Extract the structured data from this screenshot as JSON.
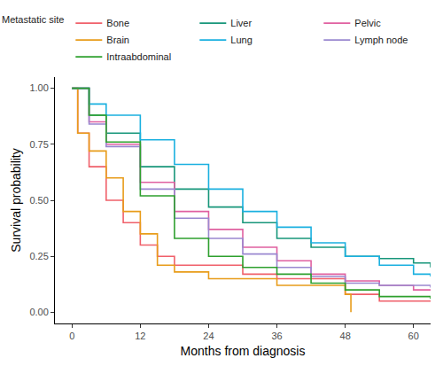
{
  "chart_data": {
    "type": "line",
    "line_style": "step",
    "x_label": "Months from diagnosis",
    "y_label": "Survival probability",
    "legend_title": "Metastatic site",
    "legend": "top",
    "grid": false,
    "xlim": [
      -3,
      63
    ],
    "xticks": [
      0,
      12,
      24,
      36,
      48,
      60
    ],
    "ylim": [
      -0.05,
      1.05
    ],
    "yticks": [
      {
        "value": 0,
        "label": "0.00"
      },
      {
        "value": 0.25,
        "label": "0.25"
      },
      {
        "value": 0.5,
        "label": "0.50"
      },
      {
        "value": 0.75,
        "label": "0.75"
      },
      {
        "value": 1,
        "label": "1.00"
      }
    ],
    "series": [
      {
        "name": "Bone",
        "color": "#f0606a",
        "x": [
          0,
          1,
          3,
          6,
          9,
          12,
          15,
          18,
          24,
          30,
          36,
          42,
          48,
          54,
          60,
          63
        ],
        "values": [
          1.0,
          0.8,
          0.65,
          0.5,
          0.4,
          0.3,
          0.25,
          0.21,
          0.21,
          0.17,
          0.15,
          0.15,
          0.08,
          0.05,
          0.05,
          0.05
        ]
      },
      {
        "name": "Liver",
        "color": "#17967a",
        "x": [
          0,
          3,
          6,
          12,
          18,
          24,
          30,
          36,
          42,
          48,
          54,
          60,
          63
        ],
        "values": [
          1.0,
          0.88,
          0.8,
          0.65,
          0.55,
          0.47,
          0.4,
          0.33,
          0.29,
          0.25,
          0.24,
          0.22,
          0.2
        ]
      },
      {
        "name": "Pelvic",
        "color": "#e060a0",
        "x": [
          0,
          3,
          6,
          12,
          18,
          24,
          30,
          36,
          42,
          48,
          54,
          60,
          63
        ],
        "values": [
          1.0,
          0.85,
          0.75,
          0.58,
          0.45,
          0.37,
          0.29,
          0.23,
          0.17,
          0.14,
          0.12,
          0.1,
          0.1
        ]
      },
      {
        "name": "Brain",
        "color": "#e89c1a",
        "x": [
          0,
          1,
          3,
          6,
          9,
          12,
          15,
          18,
          24,
          30,
          36,
          42,
          45,
          48,
          49
        ],
        "values": [
          1.0,
          0.8,
          0.72,
          0.6,
          0.45,
          0.35,
          0.21,
          0.18,
          0.15,
          0.15,
          0.12,
          0.12,
          0.12,
          0.08,
          0.0
        ]
      },
      {
        "name": "Lung",
        "color": "#1ab0e0",
        "x": [
          0,
          3,
          6,
          12,
          18,
          24,
          30,
          36,
          42,
          48,
          54,
          60,
          63
        ],
        "values": [
          1.0,
          0.93,
          0.88,
          0.77,
          0.66,
          0.55,
          0.45,
          0.38,
          0.31,
          0.25,
          0.21,
          0.17,
          0.16
        ]
      },
      {
        "name": "Lymph node",
        "color": "#9a88d0",
        "x": [
          0,
          3,
          6,
          12,
          18,
          24,
          30,
          36,
          42,
          48,
          54,
          60,
          63
        ],
        "values": [
          1.0,
          0.84,
          0.74,
          0.55,
          0.42,
          0.33,
          0.26,
          0.2,
          0.16,
          0.13,
          0.12,
          0.12,
          0.11
        ]
      },
      {
        "name": "Intraabdominal",
        "color": "#2ea02e",
        "x": [
          0,
          3,
          6,
          12,
          18,
          24,
          30,
          36,
          42,
          48,
          54,
          60,
          63
        ],
        "values": [
          1.0,
          0.88,
          0.76,
          0.52,
          0.33,
          0.25,
          0.2,
          0.17,
          0.13,
          0.1,
          0.07,
          0.07,
          0.06
        ]
      }
    ]
  }
}
